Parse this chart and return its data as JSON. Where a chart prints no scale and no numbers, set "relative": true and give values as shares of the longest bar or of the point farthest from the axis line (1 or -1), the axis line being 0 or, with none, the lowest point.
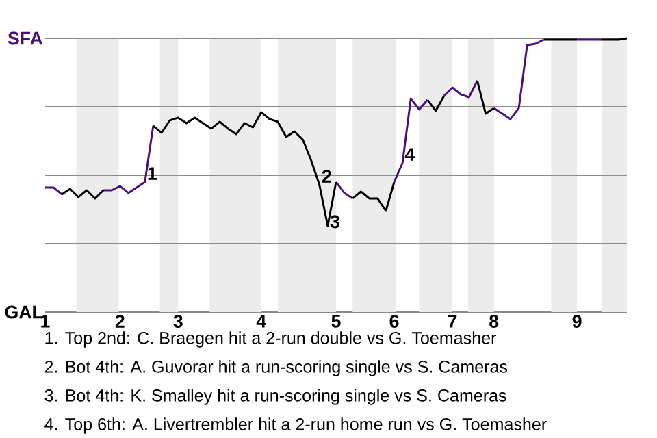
{
  "chart_data": {
    "type": "line",
    "relative": true,
    "categories": [
      "1",
      null,
      null,
      null,
      null,
      null,
      null,
      null,
      null,
      "2",
      null,
      null,
      null,
      null,
      null,
      null,
      "3",
      null,
      null,
      null,
      null,
      null,
      null,
      null,
      null,
      null,
      "4",
      null,
      null,
      null,
      null,
      null,
      null,
      null,
      null,
      "5",
      null,
      null,
      null,
      null,
      null,
      null,
      "6",
      null,
      null,
      null,
      null,
      null,
      null,
      "7",
      null,
      null,
      null,
      null,
      "8",
      null,
      null,
      null,
      null,
      null,
      null,
      null,
      null,
      null,
      "9",
      null,
      null,
      null,
      null,
      null,
      null
    ],
    "grid": "y",
    "marker": "none",
    "line_style": "solid",
    "series": [
      {
        "color": "#4b0f7a",
        "values": [
          0.455,
          0.455,
          0.43,
          null,
          null,
          null,
          null,
          0.445,
          0.445,
          0.46,
          0.435,
          0.455,
          0.475,
          0.68,
          null,
          null,
          null,
          null,
          null,
          null,
          null,
          null,
          null,
          null,
          null,
          null,
          null,
          null,
          null,
          null,
          null,
          null,
          null,
          null,
          null,
          0.475,
          0.435,
          0.415,
          null,
          null,
          null,
          null,
          0.475,
          0.545,
          0.78,
          0.74,
          0.775,
          null,
          0.79,
          0.82,
          0.795,
          0.785,
          0.845,
          null,
          0.745,
          0.725,
          0.705,
          0.745,
          0.975,
          0.98,
          0.995,
          null,
          null,
          null,
          0.995,
          0.995,
          0.995,
          0.995,
          null,
          null,
          null
        ]
      },
      {
        "color": "#000000",
        "values": [
          null,
          null,
          0.43,
          0.45,
          0.42,
          0.445,
          0.415,
          0.445,
          null,
          null,
          null,
          null,
          null,
          0.68,
          0.655,
          0.7,
          0.71,
          0.69,
          0.71,
          0.69,
          0.67,
          0.695,
          0.67,
          0.65,
          0.69,
          0.675,
          0.73,
          0.705,
          0.695,
          0.64,
          0.66,
          0.63,
          0.555,
          0.465,
          0.315,
          0.475,
          null,
          0.415,
          0.44,
          0.415,
          0.415,
          0.37,
          0.475,
          null,
          null,
          null,
          0.775,
          0.735,
          0.79,
          null,
          null,
          null,
          0.845,
          0.725,
          0.745,
          null,
          null,
          null,
          null,
          null,
          0.995,
          0.995,
          0.995,
          0.995,
          0.995,
          null,
          null,
          0.995,
          0.995,
          0.995,
          1
        ]
      }
    ],
    "annotations": [
      "SFA",
      "GAL",
      "1",
      "2",
      "3",
      "4",
      "1. Top 2nd: C. Braegen hit a 2-run double vs G. Toemasher",
      "2. Bot 4th: A. Guvorar hit a run-scoring single vs S. Cameras",
      "3. Bot 4th: K. Smalley hit a run-scoring single vs S. Cameras",
      "4. Top 6th: A. Livertrembler hit a 2-run home run vs G. Toemasher"
    ]
  }
}
